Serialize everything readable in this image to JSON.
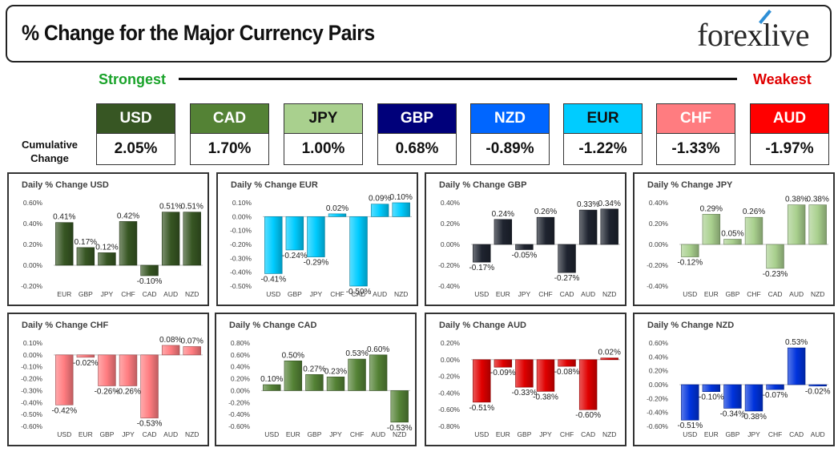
{
  "header": {
    "title": "% Change for the Major Currency Pairs",
    "logo": "forexlive"
  },
  "scale": {
    "strongest": "Strongest",
    "weakest": "Weakest"
  },
  "cumulative_label": [
    "Cumulative",
    "Change"
  ],
  "currencies": [
    {
      "code": "USD",
      "value": "2.05%",
      "bg": "#375623",
      "fg": "#ffffff"
    },
    {
      "code": "CAD",
      "value": "1.70%",
      "bg": "#548235",
      "fg": "#ffffff"
    },
    {
      "code": "JPY",
      "value": "1.00%",
      "bg": "#a9d08e",
      "fg": "#111111"
    },
    {
      "code": "GBP",
      "value": "0.68%",
      "bg": "#00007a",
      "fg": "#ffffff"
    },
    {
      "code": "NZD",
      "value": "-0.89%",
      "bg": "#0066ff",
      "fg": "#ffffff"
    },
    {
      "code": "EUR",
      "value": "-1.22%",
      "bg": "#00ccff",
      "fg": "#111111"
    },
    {
      "code": "CHF",
      "value": "-1.33%",
      "bg": "#ff7c80",
      "fg": "#ffffff"
    },
    {
      "code": "AUD",
      "value": "-1.97%",
      "bg": "#ff0000",
      "fg": "#ffffff"
    }
  ],
  "chart_data": [
    {
      "type": "bar",
      "title": "Daily % Change USD",
      "categories": [
        "EUR",
        "GBP",
        "JPY",
        "CHF",
        "CAD",
        "AUD",
        "NZD"
      ],
      "values": [
        0.41,
        0.17,
        0.12,
        0.42,
        -0.1,
        0.51,
        0.51
      ],
      "labels": [
        "0.41%",
        "0.17%",
        "0.12%",
        "0.42%",
        "-0.10%",
        "0.51%",
        "0.51%"
      ],
      "ylim": [
        -0.2,
        0.6
      ],
      "ticks": [
        -0.2,
        0,
        0.2,
        0.4,
        0.6
      ],
      "tick_labels": [
        "-0.20%",
        "0.00%",
        "0.20%",
        "0.40%",
        "0.60%"
      ],
      "color": "#375623"
    },
    {
      "type": "bar",
      "title": "Daily % Change EUR",
      "categories": [
        "USD",
        "GBP",
        "JPY",
        "CHF",
        "CAD",
        "AUD",
        "NZD"
      ],
      "values": [
        -0.41,
        -0.24,
        -0.29,
        0.02,
        -0.5,
        0.09,
        0.1
      ],
      "labels": [
        "-0.41%",
        "-0.24%",
        "-0.29%",
        "0.02%",
        "-0.50%",
        "0.09%",
        "0.10%"
      ],
      "ylim": [
        -0.5,
        0.1
      ],
      "ticks": [
        -0.5,
        -0.4,
        -0.3,
        -0.2,
        -0.1,
        0,
        0.1
      ],
      "tick_labels": [
        "-0.50%",
        "-0.40%",
        "-0.30%",
        "-0.20%",
        "-0.10%",
        "0.00%",
        "0.10%"
      ],
      "color": "#00ccff"
    },
    {
      "type": "bar",
      "title": "Daily % Change GBP",
      "categories": [
        "USD",
        "EUR",
        "JPY",
        "CHF",
        "CAD",
        "AUD",
        "NZD"
      ],
      "values": [
        -0.17,
        0.24,
        -0.05,
        0.26,
        -0.27,
        0.33,
        0.34
      ],
      "labels": [
        "-0.17%",
        "0.24%",
        "-0.05%",
        "0.26%",
        "-0.27%",
        "0.33%",
        "0.34%"
      ],
      "ylim": [
        -0.4,
        0.4
      ],
      "ticks": [
        -0.4,
        -0.2,
        0,
        0.2,
        0.4
      ],
      "tick_labels": [
        "-0.40%",
        "-0.20%",
        "0.00%",
        "0.20%",
        "0.40%"
      ],
      "color": "#1f2430"
    },
    {
      "type": "bar",
      "title": "Daily % Change JPY",
      "categories": [
        "USD",
        "EUR",
        "GBP",
        "CHF",
        "CAD",
        "AUD",
        "NZD"
      ],
      "values": [
        -0.12,
        0.29,
        0.05,
        0.26,
        -0.23,
        0.38,
        0.38
      ],
      "labels": [
        "-0.12%",
        "0.29%",
        "0.05%",
        "0.26%",
        "-0.23%",
        "0.38%",
        "0.38%"
      ],
      "ylim": [
        -0.4,
        0.4
      ],
      "ticks": [
        -0.4,
        -0.2,
        0,
        0.2,
        0.4
      ],
      "tick_labels": [
        "-0.40%",
        "-0.20%",
        "0.00%",
        "0.20%",
        "0.40%"
      ],
      "color": "#a9d08e"
    },
    {
      "type": "bar",
      "title": "Daily % Change CHF",
      "categories": [
        "USD",
        "EUR",
        "GBP",
        "JPY",
        "CAD",
        "AUD",
        "NZD"
      ],
      "values": [
        -0.42,
        -0.02,
        -0.26,
        -0.26,
        -0.53,
        0.08,
        0.07
      ],
      "labels": [
        "-0.42%",
        "-0.02%",
        "-0.26%",
        "-0.26%",
        "-0.53%",
        "0.08%",
        "0.07%"
      ],
      "ylim": [
        -0.6,
        0.1
      ],
      "ticks": [
        -0.6,
        -0.5,
        -0.4,
        -0.3,
        -0.2,
        -0.1,
        0,
        0.1
      ],
      "tick_labels": [
        "-0.60%",
        "-0.50%",
        "-0.40%",
        "-0.30%",
        "-0.20%",
        "-0.10%",
        "0.00%",
        "0.10%"
      ],
      "color": "#ff7c80"
    },
    {
      "type": "bar",
      "title": "Daily % Change CAD",
      "categories": [
        "USD",
        "EUR",
        "GBP",
        "JPY",
        "CHF",
        "AUD",
        "NZD"
      ],
      "values": [
        0.1,
        0.5,
        0.27,
        0.23,
        0.53,
        0.6,
        -0.53
      ],
      "labels": [
        "0.10%",
        "0.50%",
        "0.27%",
        "0.23%",
        "0.53%",
        "0.60%",
        "-0.53%"
      ],
      "ylim": [
        -0.6,
        0.8
      ],
      "ticks": [
        -0.6,
        -0.4,
        -0.2,
        0,
        0.2,
        0.4,
        0.6,
        0.8
      ],
      "tick_labels": [
        "-0.60%",
        "-0.40%",
        "-0.20%",
        "0.00%",
        "0.20%",
        "0.40%",
        "0.60%",
        "0.80%"
      ],
      "color": "#548235"
    },
    {
      "type": "bar",
      "title": "Daily % Change AUD",
      "categories": [
        "USD",
        "EUR",
        "GBP",
        "JPY",
        "CHF",
        "CAD",
        "NZD"
      ],
      "values": [
        -0.51,
        -0.09,
        -0.33,
        -0.38,
        -0.08,
        -0.6,
        0.02
      ],
      "labels": [
        "-0.51%",
        "-0.09%",
        "-0.33%",
        "-0.38%",
        "-0.08%",
        "-0.60%",
        "0.02%"
      ],
      "ylim": [
        -0.8,
        0.2
      ],
      "ticks": [
        -0.8,
        -0.6,
        -0.4,
        -0.2,
        0,
        0.2
      ],
      "tick_labels": [
        "-0.80%",
        "-0.60%",
        "-0.40%",
        "-0.20%",
        "0.00%",
        "0.20%"
      ],
      "color": "#e00000"
    },
    {
      "type": "bar",
      "title": "Daily % Change NZD",
      "categories": [
        "USD",
        "EUR",
        "GBP",
        "JPY",
        "CHF",
        "CAD",
        "AUD"
      ],
      "values": [
        -0.51,
        -0.1,
        -0.34,
        -0.38,
        -0.07,
        0.53,
        -0.02
      ],
      "labels": [
        "-0.51%",
        "-0.10%",
        "-0.34%",
        "-0.38%",
        "-0.07%",
        "0.53%",
        "-0.02%"
      ],
      "ylim": [
        -0.6,
        0.6
      ],
      "ticks": [
        -0.6,
        -0.4,
        -0.2,
        0,
        0.2,
        0.4,
        0.6
      ],
      "tick_labels": [
        "-0.60%",
        "-0.40%",
        "-0.20%",
        "0.00%",
        "0.20%",
        "0.40%",
        "0.60%"
      ],
      "color": "#0033dd"
    }
  ]
}
